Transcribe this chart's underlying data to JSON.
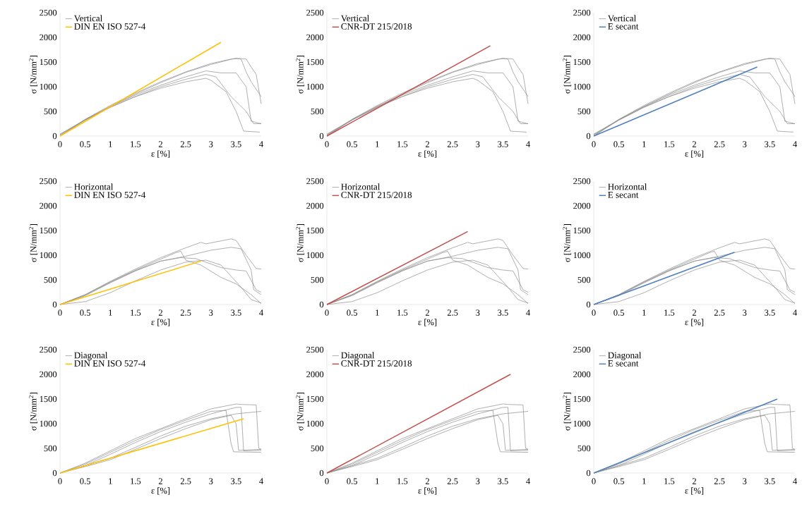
{
  "chart_data": [
    {
      "type": "line",
      "xlabel": "ε [%]",
      "ylabel": "σ [N/mm$^{2}$]",
      "xlim": [
        0,
        4
      ],
      "ylim": [
        0,
        2500
      ],
      "xticks": [
        0,
        0.5,
        1,
        1.5,
        2,
        2.5,
        3,
        3.5,
        4
      ],
      "yticks": [
        0,
        500,
        1000,
        1500,
        2000,
        2500
      ],
      "legend": "top left",
      "series": [
        {
          "name": "Vertical",
          "color": "#8c8c8c",
          "x": [
            0,
            0.5,
            1,
            1.5,
            2,
            2.5,
            3,
            3.5,
            3.6,
            3.7,
            3.8,
            3.9,
            4
          ],
          "values": [
            0,
            330,
            600,
            850,
            1080,
            1290,
            1450,
            1580,
            1560,
            1300,
            1100,
            950,
            800
          ]
        },
        {
          "color": "#8c8c8c",
          "x": [
            0,
            0.5,
            1,
            1.5,
            2,
            2.5,
            3,
            3.4,
            3.6,
            3.7,
            3.8,
            3.9,
            4
          ],
          "values": [
            0,
            340,
            620,
            870,
            1100,
            1300,
            1470,
            1560,
            1570,
            1560,
            1400,
            1250,
            650
          ]
        },
        {
          "color": "#8c8c8c",
          "x": [
            0,
            0.5,
            1,
            1.5,
            2,
            2.5,
            2.9,
            3.2,
            3.5,
            3.7,
            3.8,
            4
          ],
          "values": [
            30,
            330,
            600,
            830,
            1030,
            1200,
            1320,
            1280,
            1280,
            1000,
            300,
            250
          ]
        },
        {
          "color": "#8c8c8c",
          "x": [
            0,
            0.5,
            1,
            1.5,
            2,
            2.5,
            2.9,
            3.1,
            3.4,
            3.7,
            3.85,
            4
          ],
          "values": [
            20,
            320,
            580,
            800,
            1000,
            1150,
            1250,
            1200,
            800,
            500,
            250,
            250
          ]
        },
        {
          "color": "#8c8c8c",
          "x": [
            0,
            0.5,
            1,
            1.5,
            2,
            2.5,
            2.9,
            3,
            3.3,
            3.5,
            3.65,
            3.97
          ],
          "values": [
            40,
            330,
            590,
            800,
            970,
            1100,
            1170,
            1130,
            900,
            500,
            100,
            80
          ]
        },
        {
          "name": "DIN EN ISO 527-4",
          "color": "#ffc000",
          "x": [
            0,
            3.2
          ],
          "values": [
            0,
            1900
          ]
        }
      ]
    },
    {
      "type": "line",
      "xlabel": "ε [%]",
      "ylabel": "σ [N/mm$^{2}$]",
      "xlim": [
        0,
        4
      ],
      "ylim": [
        0,
        2500
      ],
      "xticks": [
        0,
        0.5,
        1,
        1.5,
        2,
        2.5,
        3,
        3.5,
        4
      ],
      "yticks": [
        0,
        500,
        1000,
        1500,
        2000,
        2500
      ],
      "legend": "top left",
      "series": [
        {
          "name": "Vertical",
          "color": "#8c8c8c",
          "x": [
            0,
            0.5,
            1,
            1.5,
            2,
            2.5,
            3,
            3.5,
            3.6,
            3.7,
            3.8,
            3.9,
            4
          ],
          "values": [
            0,
            330,
            600,
            850,
            1080,
            1290,
            1450,
            1580,
            1560,
            1300,
            1100,
            950,
            800
          ]
        },
        {
          "color": "#8c8c8c",
          "x": [
            0,
            0.5,
            1,
            1.5,
            2,
            2.5,
            3,
            3.4,
            3.6,
            3.7,
            3.8,
            3.9,
            4
          ],
          "values": [
            0,
            340,
            620,
            870,
            1100,
            1300,
            1470,
            1560,
            1570,
            1560,
            1400,
            1250,
            650
          ]
        },
        {
          "color": "#8c8c8c",
          "x": [
            0,
            0.5,
            1,
            1.5,
            2,
            2.5,
            2.9,
            3.2,
            3.5,
            3.7,
            3.8,
            4
          ],
          "values": [
            30,
            330,
            600,
            830,
            1030,
            1200,
            1320,
            1280,
            1280,
            1000,
            300,
            250
          ]
        },
        {
          "color": "#8c8c8c",
          "x": [
            0,
            0.5,
            1,
            1.5,
            2,
            2.5,
            2.9,
            3.1,
            3.4,
            3.7,
            3.85,
            4
          ],
          "values": [
            20,
            320,
            580,
            800,
            1000,
            1150,
            1250,
            1200,
            800,
            500,
            250,
            250
          ]
        },
        {
          "color": "#8c8c8c",
          "x": [
            0,
            0.5,
            1,
            1.5,
            2,
            2.5,
            2.9,
            3,
            3.3,
            3.5,
            3.65,
            3.97
          ],
          "values": [
            40,
            330,
            590,
            800,
            970,
            1100,
            1170,
            1130,
            900,
            500,
            100,
            80
          ]
        },
        {
          "name": "CNR-DT 215/2018",
          "color": "#c0504d",
          "x": [
            0,
            3.25
          ],
          "values": [
            0,
            1830
          ]
        }
      ]
    },
    {
      "type": "line",
      "xlabel": "ε [%]",
      "ylabel": "σ [N/mm$^{2}$]",
      "xlim": [
        0,
        4
      ],
      "ylim": [
        0,
        2500
      ],
      "xticks": [
        0,
        0.5,
        1,
        1.5,
        2,
        2.5,
        3,
        3.5,
        4
      ],
      "yticks": [
        0,
        500,
        1000,
        1500,
        2000,
        2500
      ],
      "legend": "top left",
      "series": [
        {
          "name": "Vertical",
          "color": "#8c8c8c",
          "x": [
            0,
            0.5,
            1,
            1.5,
            2,
            2.5,
            3,
            3.5,
            3.6,
            3.7,
            3.8,
            3.9,
            4
          ],
          "values": [
            0,
            330,
            600,
            850,
            1080,
            1290,
            1450,
            1580,
            1560,
            1300,
            1100,
            950,
            800
          ]
        },
        {
          "color": "#8c8c8c",
          "x": [
            0,
            0.5,
            1,
            1.5,
            2,
            2.5,
            3,
            3.4,
            3.6,
            3.7,
            3.8,
            3.9,
            4
          ],
          "values": [
            0,
            340,
            620,
            870,
            1100,
            1300,
            1470,
            1560,
            1570,
            1560,
            1400,
            1250,
            650
          ]
        },
        {
          "color": "#8c8c8c",
          "x": [
            0,
            0.5,
            1,
            1.5,
            2,
            2.5,
            2.9,
            3.2,
            3.5,
            3.7,
            3.8,
            4
          ],
          "values": [
            30,
            330,
            600,
            830,
            1030,
            1200,
            1320,
            1280,
            1280,
            1000,
            300,
            250
          ]
        },
        {
          "color": "#8c8c8c",
          "x": [
            0,
            0.5,
            1,
            1.5,
            2,
            2.5,
            2.9,
            3.1,
            3.4,
            3.7,
            3.85,
            4
          ],
          "values": [
            20,
            320,
            580,
            800,
            1000,
            1150,
            1250,
            1200,
            800,
            500,
            250,
            250
          ]
        },
        {
          "color": "#8c8c8c",
          "x": [
            0,
            0.5,
            1,
            1.5,
            2,
            2.5,
            2.9,
            3,
            3.3,
            3.5,
            3.65,
            3.97
          ],
          "values": [
            40,
            330,
            590,
            800,
            970,
            1100,
            1170,
            1130,
            900,
            500,
            100,
            80
          ]
        },
        {
          "name": "E secant",
          "color": "#4f81bd",
          "x": [
            0,
            3.25
          ],
          "values": [
            0,
            1400
          ]
        }
      ]
    },
    {
      "type": "line",
      "xlabel": "ε [%]",
      "ylabel": "σ [N/mm$^{2}$]",
      "xlim": [
        0,
        4
      ],
      "ylim": [
        0,
        2500
      ],
      "xticks": [
        0,
        0.5,
        1,
        1.5,
        2,
        2.5,
        3,
        3.5,
        4
      ],
      "yticks": [
        0,
        500,
        1000,
        1500,
        2000,
        2500
      ],
      "legend": "top left",
      "series": [
        {
          "name": "Horizontal",
          "color": "#8c8c8c",
          "x": [
            0,
            0.5,
            1,
            1.5,
            2,
            2.5,
            2.8,
            2.9,
            3.4,
            3.5,
            3.7,
            3.9,
            4
          ],
          "values": [
            0,
            200,
            470,
            720,
            950,
            1150,
            1260,
            1230,
            1330,
            1300,
            1000,
            730,
            720
          ]
        },
        {
          "color": "#8c8c8c",
          "x": [
            0,
            0.5,
            1,
            1.5,
            2,
            2.5,
            3,
            3.4,
            3.6,
            3.8,
            3.85,
            4
          ],
          "values": [
            0,
            180,
            440,
            680,
            880,
            980,
            1100,
            1160,
            1130,
            700,
            300,
            200
          ]
        },
        {
          "color": "#8c8c8c",
          "x": [
            0,
            0.5,
            1,
            1.5,
            2,
            2.3,
            2.4,
            2.5,
            2.8,
            3.2,
            3.5,
            3.8,
            4
          ],
          "values": [
            0,
            200,
            460,
            700,
            920,
            1050,
            1080,
            900,
            800,
            550,
            420,
            200,
            20
          ]
        },
        {
          "color": "#8c8c8c",
          "x": [
            0,
            0.5,
            1,
            1.5,
            2,
            2.4,
            2.7,
            3.2,
            3.5,
            3.7,
            3.9,
            4
          ],
          "values": [
            0,
            190,
            450,
            690,
            880,
            950,
            930,
            750,
            700,
            680,
            300,
            250
          ]
        },
        {
          "color": "#8c8c8c",
          "x": [
            0,
            0.5,
            1,
            1.5,
            2,
            2.5,
            2.9,
            3.2,
            3.6,
            3.8,
            4
          ],
          "values": [
            0,
            60,
            240,
            480,
            700,
            860,
            900,
            800,
            350,
            100,
            30
          ]
        },
        {
          "name": "DIN EN ISO 527-4",
          "color": "#ffc000",
          "x": [
            0,
            2.8
          ],
          "values": [
            0,
            880
          ]
        }
      ]
    },
    {
      "type": "line",
      "xlabel": "ε [%]",
      "ylabel": "σ [N/mm$^{2}$]",
      "xlim": [
        0,
        4
      ],
      "ylim": [
        0,
        2500
      ],
      "xticks": [
        0,
        0.5,
        1,
        1.5,
        2,
        2.5,
        3,
        3.5,
        4
      ],
      "yticks": [
        0,
        500,
        1000,
        1500,
        2000,
        2500
      ],
      "legend": "top left",
      "series": [
        {
          "name": "Horizontal",
          "color": "#8c8c8c",
          "x": [
            0,
            0.5,
            1,
            1.5,
            2,
            2.5,
            2.8,
            2.9,
            3.4,
            3.5,
            3.7,
            3.9,
            4
          ],
          "values": [
            0,
            200,
            470,
            720,
            950,
            1150,
            1260,
            1230,
            1330,
            1300,
            1000,
            730,
            720
          ]
        },
        {
          "color": "#8c8c8c",
          "x": [
            0,
            0.5,
            1,
            1.5,
            2,
            2.5,
            3,
            3.4,
            3.6,
            3.8,
            3.85,
            4
          ],
          "values": [
            0,
            180,
            440,
            680,
            880,
            980,
            1100,
            1160,
            1130,
            700,
            300,
            200
          ]
        },
        {
          "color": "#8c8c8c",
          "x": [
            0,
            0.5,
            1,
            1.5,
            2,
            2.3,
            2.4,
            2.5,
            2.8,
            3.2,
            3.5,
            3.8,
            4
          ],
          "values": [
            0,
            200,
            460,
            700,
            920,
            1050,
            1080,
            900,
            800,
            550,
            420,
            200,
            20
          ]
        },
        {
          "color": "#8c8c8c",
          "x": [
            0,
            0.5,
            1,
            1.5,
            2,
            2.4,
            2.7,
            3.2,
            3.5,
            3.7,
            3.9,
            4
          ],
          "values": [
            0,
            190,
            450,
            690,
            880,
            950,
            930,
            750,
            700,
            680,
            300,
            250
          ]
        },
        {
          "color": "#8c8c8c",
          "x": [
            0,
            0.5,
            1,
            1.5,
            2,
            2.5,
            2.9,
            3.2,
            3.6,
            3.8,
            4
          ],
          "values": [
            0,
            60,
            240,
            480,
            700,
            860,
            900,
            800,
            350,
            100,
            30
          ]
        },
        {
          "name": "CNR-DT 215/2018",
          "color": "#c0504d",
          "x": [
            0,
            2.8
          ],
          "values": [
            0,
            1480
          ]
        }
      ]
    },
    {
      "type": "line",
      "xlabel": "ε [%]",
      "ylabel": "σ [N/mm$^{2}$]",
      "xlim": [
        0,
        4
      ],
      "ylim": [
        0,
        2500
      ],
      "xticks": [
        0,
        0.5,
        1,
        1.5,
        2,
        2.5,
        3,
        3.5,
        4
      ],
      "yticks": [
        0,
        500,
        1000,
        1500,
        2000,
        2500
      ],
      "legend": "top left",
      "series": [
        {
          "name": "Horizontal",
          "color": "#8c8c8c",
          "x": [
            0,
            0.5,
            1,
            1.5,
            2,
            2.5,
            2.8,
            2.9,
            3.4,
            3.5,
            3.7,
            3.9,
            4
          ],
          "values": [
            0,
            200,
            470,
            720,
            950,
            1150,
            1260,
            1230,
            1330,
            1300,
            1000,
            730,
            720
          ]
        },
        {
          "color": "#8c8c8c",
          "x": [
            0,
            0.5,
            1,
            1.5,
            2,
            2.5,
            3,
            3.4,
            3.6,
            3.8,
            3.85,
            4
          ],
          "values": [
            0,
            180,
            440,
            680,
            880,
            980,
            1100,
            1160,
            1130,
            700,
            300,
            200
          ]
        },
        {
          "color": "#8c8c8c",
          "x": [
            0,
            0.5,
            1,
            1.5,
            2,
            2.3,
            2.4,
            2.5,
            2.8,
            3.2,
            3.5,
            3.8,
            4
          ],
          "values": [
            0,
            200,
            460,
            700,
            920,
            1050,
            1080,
            900,
            800,
            550,
            420,
            200,
            20
          ]
        },
        {
          "color": "#8c8c8c",
          "x": [
            0,
            0.5,
            1,
            1.5,
            2,
            2.4,
            2.7,
            3.2,
            3.5,
            3.7,
            3.9,
            4
          ],
          "values": [
            0,
            190,
            450,
            690,
            880,
            950,
            930,
            750,
            700,
            680,
            300,
            250
          ]
        },
        {
          "color": "#8c8c8c",
          "x": [
            0,
            0.5,
            1,
            1.5,
            2,
            2.5,
            2.9,
            3.2,
            3.6,
            3.8,
            4
          ],
          "values": [
            0,
            60,
            240,
            480,
            700,
            860,
            900,
            800,
            350,
            100,
            30
          ]
        },
        {
          "name": "E secant",
          "color": "#4f81bd",
          "x": [
            0,
            2.8
          ],
          "values": [
            0,
            1060
          ]
        }
      ]
    },
    {
      "type": "line",
      "xlabel": "ε [%]",
      "ylabel": "σ [N/mm$^{2}$]",
      "xlim": [
        0,
        4
      ],
      "ylim": [
        0,
        2500
      ],
      "xticks": [
        0,
        0.5,
        1,
        1.5,
        2,
        2.5,
        3,
        3.5,
        4
      ],
      "yticks": [
        0,
        500,
        1000,
        1500,
        2000,
        2500
      ],
      "legend": "top left",
      "series": [
        {
          "name": "Diagonal",
          "color": "#8c8c8c",
          "x": [
            0,
            0.5,
            1,
            1.5,
            2,
            2.5,
            3,
            3.5,
            3.6,
            3.9,
            3.95,
            4
          ],
          "values": [
            0,
            200,
            450,
            700,
            900,
            1100,
            1300,
            1400,
            1390,
            1380,
            500,
            480
          ]
        },
        {
          "color": "#8c8c8c",
          "x": [
            0,
            0.5,
            1,
            1.5,
            2,
            2.5,
            3,
            3.3,
            3.4,
            3.45,
            4
          ],
          "values": [
            0,
            180,
            420,
            660,
            880,
            1070,
            1250,
            1270,
            600,
            430,
            420
          ]
        },
        {
          "color": "#8c8c8c",
          "x": [
            0,
            0.5,
            1,
            1.5,
            2,
            2.5,
            3,
            3.5,
            3.6,
            3.65,
            4
          ],
          "values": [
            0,
            150,
            380,
            620,
            840,
            1030,
            1200,
            1330,
            1330,
            450,
            460
          ]
        },
        {
          "color": "#8c8c8c",
          "x": [
            0,
            0.5,
            1,
            1.5,
            2,
            2.5,
            3,
            3.5,
            4
          ],
          "values": [
            0,
            150,
            300,
            520,
            750,
            950,
            1100,
            1200,
            1250
          ]
        },
        {
          "color": "#8c8c8c",
          "x": [
            0,
            0.5,
            1,
            1.5,
            2,
            2.5,
            3,
            3.4,
            3.5,
            3.55,
            4
          ],
          "values": [
            0,
            130,
            270,
            480,
            700,
            900,
            1080,
            1170,
            1000,
            460,
            480
          ]
        },
        {
          "name": "DIN EN ISO 527-4",
          "color": "#ffc000",
          "x": [
            0,
            3.65
          ],
          "values": [
            0,
            1100
          ]
        }
      ]
    },
    {
      "type": "line",
      "xlabel": "ε [%]",
      "ylabel": "σ [N/mm$^{2}$]",
      "xlim": [
        0,
        4
      ],
      "ylim": [
        0,
        2500
      ],
      "xticks": [
        0,
        0.5,
        1,
        1.5,
        2,
        2.5,
        3,
        3.5,
        4
      ],
      "yticks": [
        0,
        500,
        1000,
        1500,
        2000,
        2500
      ],
      "legend": "top left",
      "series": [
        {
          "name": "Diagonal",
          "color": "#8c8c8c",
          "x": [
            0,
            0.5,
            1,
            1.5,
            2,
            2.5,
            3,
            3.5,
            3.6,
            3.9,
            3.95,
            4
          ],
          "values": [
            0,
            200,
            450,
            700,
            900,
            1100,
            1300,
            1400,
            1390,
            1380,
            500,
            480
          ]
        },
        {
          "color": "#8c8c8c",
          "x": [
            0,
            0.5,
            1,
            1.5,
            2,
            2.5,
            3,
            3.3,
            3.4,
            3.45,
            4
          ],
          "values": [
            0,
            180,
            420,
            660,
            880,
            1070,
            1250,
            1270,
            600,
            430,
            420
          ]
        },
        {
          "color": "#8c8c8c",
          "x": [
            0,
            0.5,
            1,
            1.5,
            2,
            2.5,
            3,
            3.5,
            3.6,
            3.65,
            4
          ],
          "values": [
            0,
            150,
            380,
            620,
            840,
            1030,
            1200,
            1330,
            1330,
            450,
            460
          ]
        },
        {
          "color": "#8c8c8c",
          "x": [
            0,
            0.5,
            1,
            1.5,
            2,
            2.5,
            3,
            3.5,
            4
          ],
          "values": [
            0,
            150,
            300,
            520,
            750,
            950,
            1100,
            1200,
            1250
          ]
        },
        {
          "color": "#8c8c8c",
          "x": [
            0,
            0.5,
            1,
            1.5,
            2,
            2.5,
            3,
            3.4,
            3.5,
            3.55,
            4
          ],
          "values": [
            0,
            130,
            270,
            480,
            700,
            900,
            1080,
            1170,
            1000,
            460,
            480
          ]
        },
        {
          "name": "CNR-DT 215/2018",
          "color": "#c0504d",
          "x": [
            0,
            3.65
          ],
          "values": [
            0,
            2000
          ]
        }
      ]
    },
    {
      "type": "line",
      "xlabel": "ε [%]",
      "ylabel": "σ [N/mm$^{2}$]",
      "xlim": [
        0,
        4
      ],
      "ylim": [
        0,
        2500
      ],
      "xticks": [
        0,
        0.5,
        1,
        1.5,
        2,
        2.5,
        3,
        3.5,
        4
      ],
      "yticks": [
        0,
        500,
        1000,
        1500,
        2000,
        2500
      ],
      "legend": "top left",
      "series": [
        {
          "name": "Diagonal",
          "color": "#8c8c8c",
          "x": [
            0,
            0.5,
            1,
            1.5,
            2,
            2.5,
            3,
            3.5,
            3.6,
            3.9,
            3.95,
            4
          ],
          "values": [
            0,
            200,
            450,
            700,
            900,
            1100,
            1300,
            1400,
            1390,
            1380,
            500,
            480
          ]
        },
        {
          "color": "#8c8c8c",
          "x": [
            0,
            0.5,
            1,
            1.5,
            2,
            2.5,
            3,
            3.3,
            3.4,
            3.45,
            4
          ],
          "values": [
            0,
            180,
            420,
            660,
            880,
            1070,
            1250,
            1270,
            600,
            430,
            420
          ]
        },
        {
          "color": "#8c8c8c",
          "x": [
            0,
            0.5,
            1,
            1.5,
            2,
            2.5,
            3,
            3.5,
            3.6,
            3.65,
            4
          ],
          "values": [
            0,
            150,
            380,
            620,
            840,
            1030,
            1200,
            1330,
            1330,
            450,
            460
          ]
        },
        {
          "color": "#8c8c8c",
          "x": [
            0,
            0.5,
            1,
            1.5,
            2,
            2.5,
            3,
            3.5,
            4
          ],
          "values": [
            0,
            150,
            300,
            520,
            750,
            950,
            1100,
            1200,
            1250
          ]
        },
        {
          "color": "#8c8c8c",
          "x": [
            0,
            0.5,
            1,
            1.5,
            2,
            2.5,
            3,
            3.4,
            3.5,
            3.55,
            4
          ],
          "values": [
            0,
            130,
            270,
            480,
            700,
            900,
            1080,
            1170,
            1000,
            460,
            480
          ]
        },
        {
          "name": "E secant",
          "color": "#4f81bd",
          "x": [
            0,
            3.65
          ],
          "values": [
            0,
            1500
          ]
        }
      ]
    }
  ]
}
